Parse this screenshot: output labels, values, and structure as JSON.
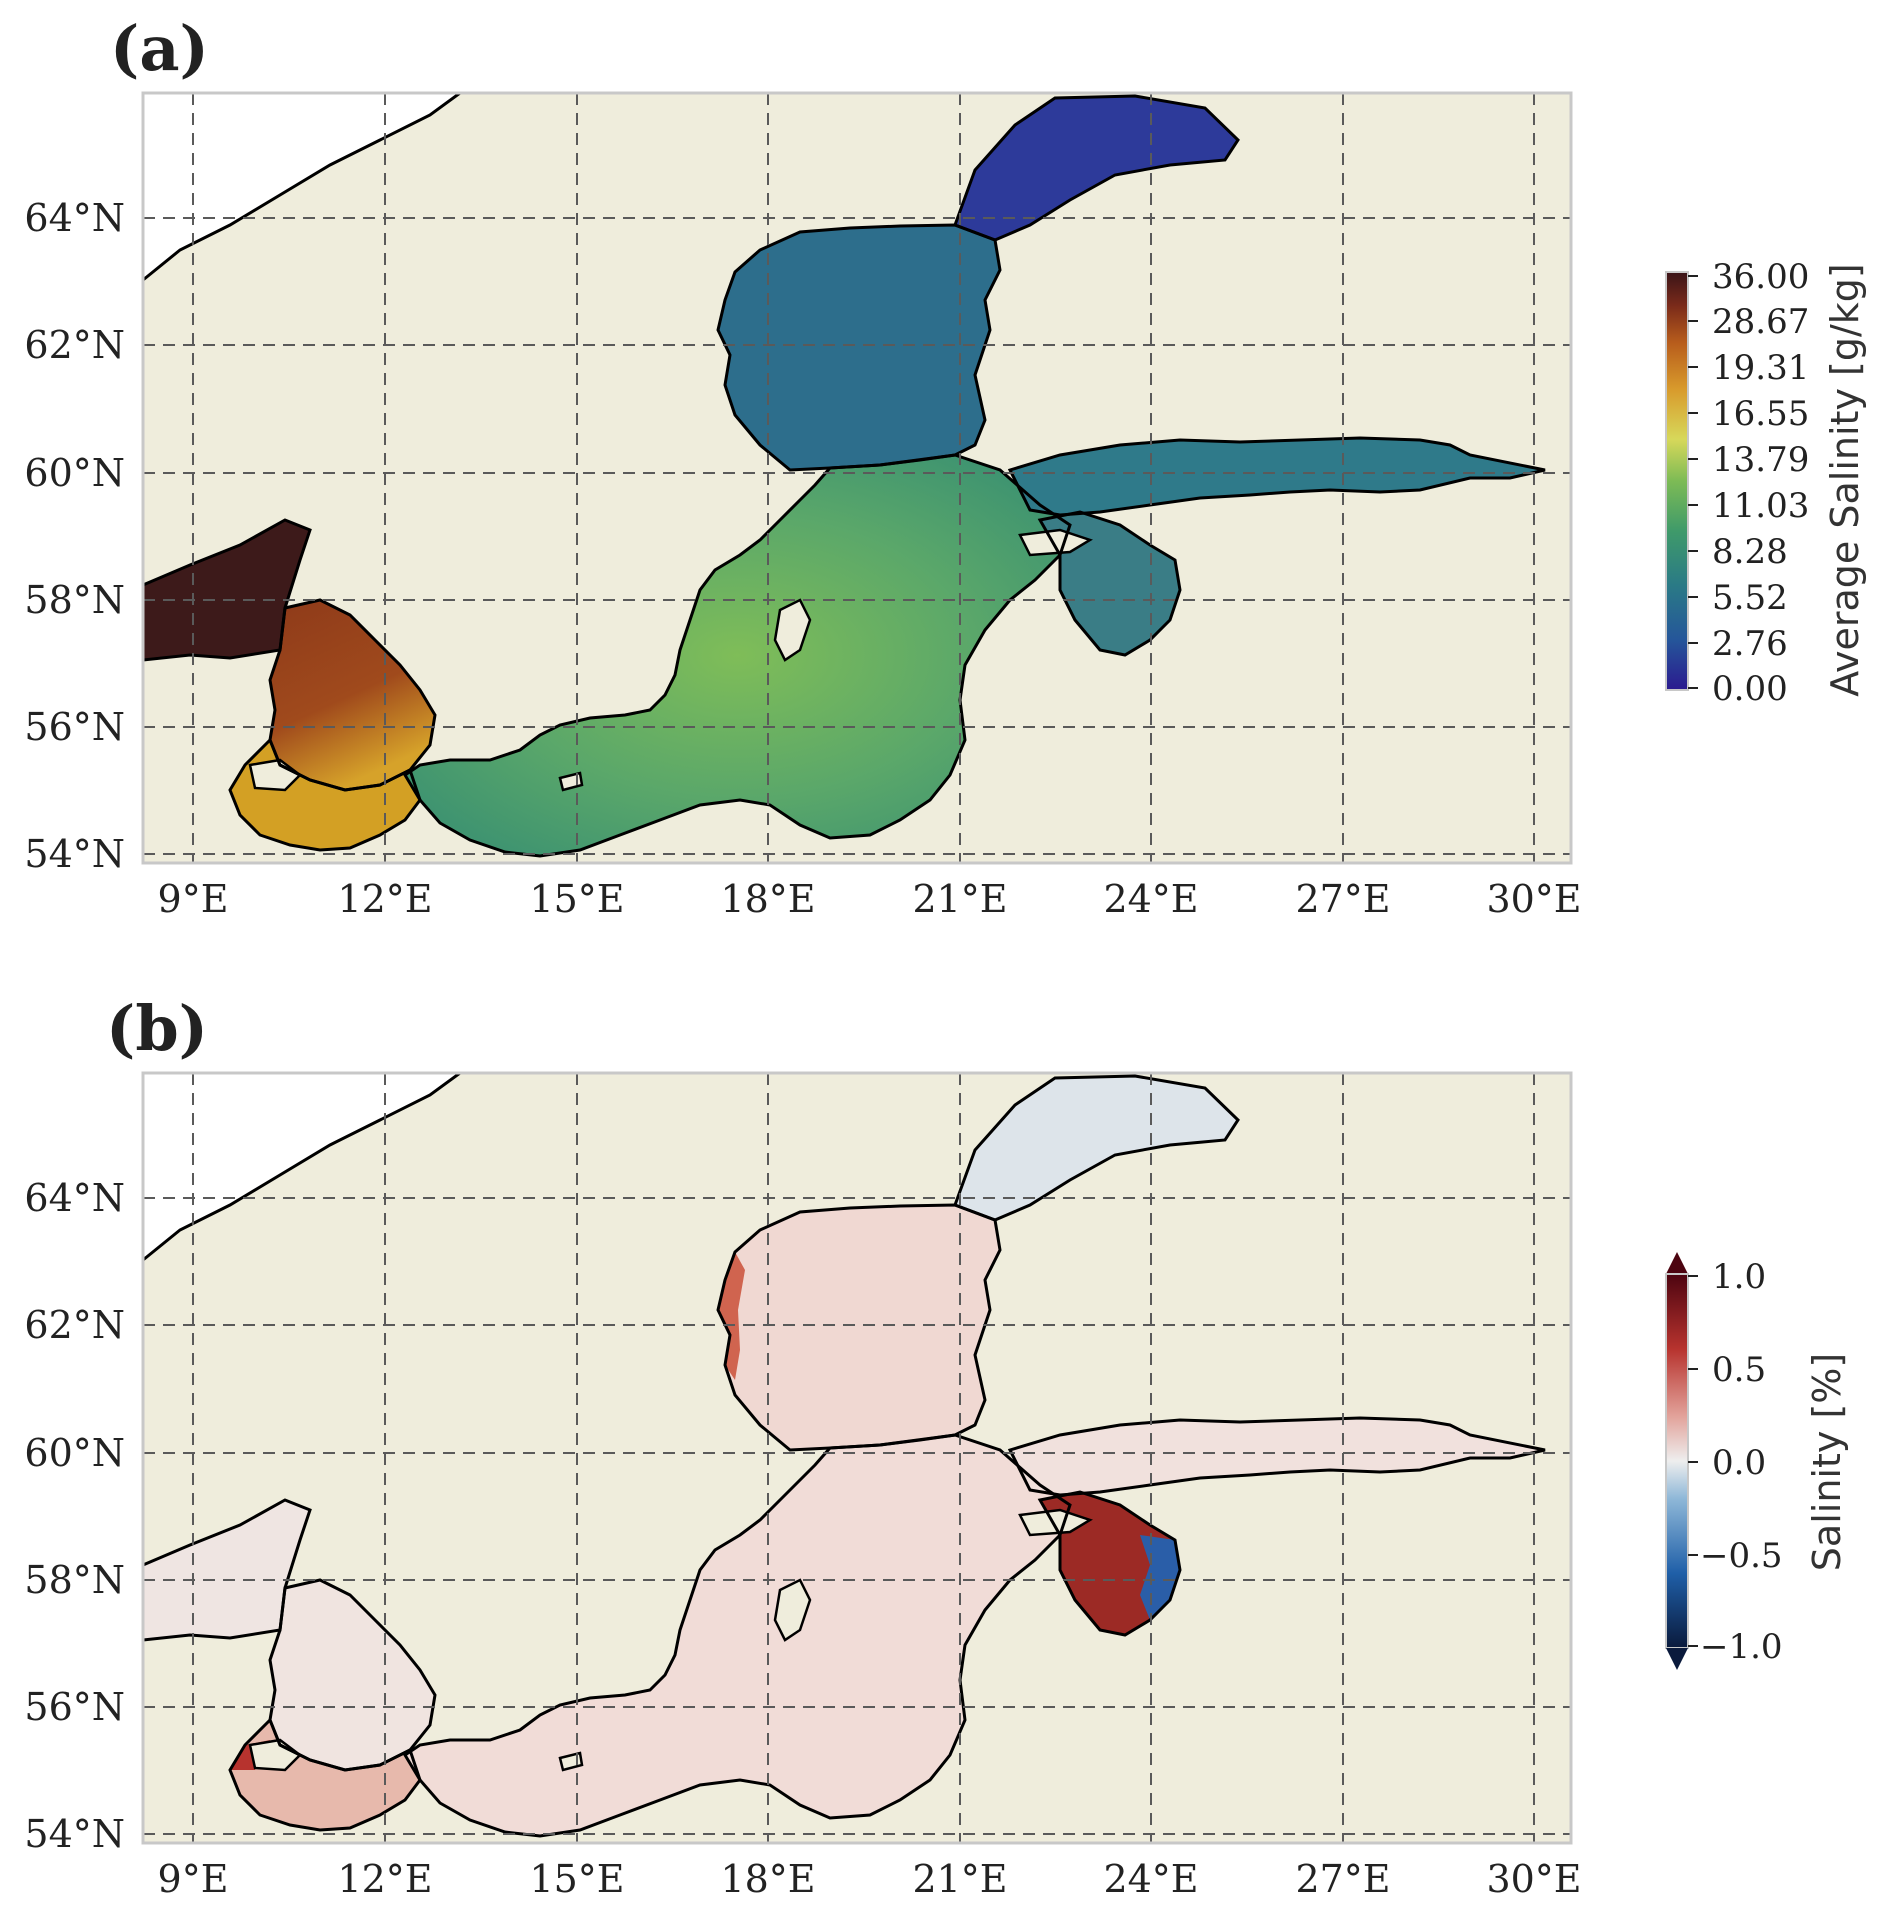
{
  "panels": [
    {
      "label": "(a)",
      "map_type": "filled field over Baltic Sea basemap",
      "lon_ticks": [
        "9°E",
        "12°E",
        "15°E",
        "18°E",
        "21°E",
        "24°E",
        "27°E",
        "30°E"
      ],
      "lat_ticks": [
        "64°N",
        "62°N",
        "60°N",
        "58°N",
        "56°N",
        "54°N"
      ],
      "colorbar": {
        "title": "Average Salinity [g/kg]",
        "ticks": [
          "36.00",
          "28.67",
          "19.31",
          "16.55",
          "13.79",
          "11.03",
          "8.28",
          "5.52",
          "2.76",
          "0.00"
        ],
        "colormap": [
          "#2b1a8f",
          "#25569a",
          "#2a7a86",
          "#3f9a6a",
          "#7dbb55",
          "#d7d85a",
          "#d89a2c",
          "#b85d1c",
          "#7a2a1a",
          "#3a1418"
        ]
      },
      "regions": {
        "bothnian_bay": "#2d3a9a",
        "bothnian_sea": "#2d6e8c",
        "gulf_of_finland": "#2f7a8a",
        "baltic_proper": "#5aa76a",
        "kattegat": "#8a3b1c",
        "skagerrak": "#3d1a1a",
        "danish_straits": "#d3a024"
      }
    },
    {
      "label": "(b)",
      "map_type": "filled field over Baltic Sea basemap",
      "lon_ticks": [
        "9°E",
        "12°E",
        "15°E",
        "18°E",
        "21°E",
        "24°E",
        "27°E",
        "30°E"
      ],
      "lat_ticks": [
        "64°N",
        "62°N",
        "60°N",
        "58°N",
        "56°N",
        "54°N"
      ],
      "colorbar": {
        "title": "Salinity [%]",
        "ticks": [
          "1.0",
          "0.5",
          "0.0",
          "−0.5",
          "−1.0"
        ],
        "colormap": [
          "#0a1a3c",
          "#1f5fa8",
          "#8fb8d8",
          "#eeeeee",
          "#e2a29a",
          "#b7332e",
          "#4d0410"
        ]
      },
      "regions": {
        "bothnian_bay": "#dde4ea",
        "main_basin": "#f1dcd7",
        "gulf_of_riga": "#9c2a25",
        "riga_east": "#2a5ea8"
      }
    }
  ],
  "colors": {
    "land": "#efeddc",
    "grid": "#5a5a5a",
    "coast": "#000000"
  }
}
